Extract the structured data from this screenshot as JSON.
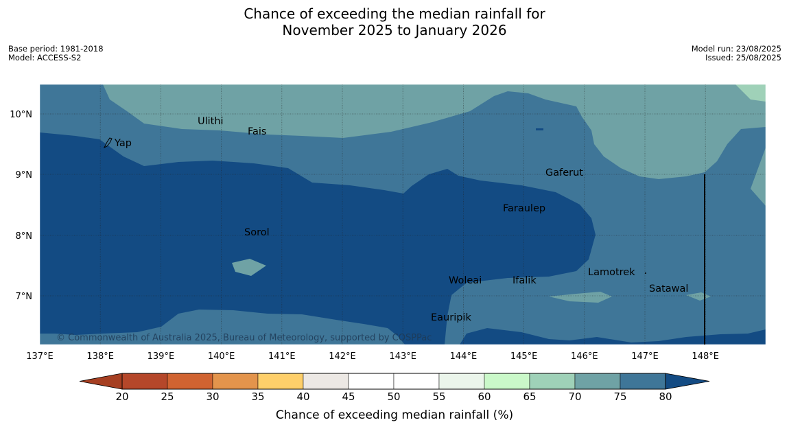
{
  "title": {
    "line1": "Chance of exceeding the median rainfall for",
    "line2": "November 2025 to January 2026"
  },
  "meta_left": {
    "base_period": "Base period: 1981-2018",
    "model": "Model: ACCESS-S2"
  },
  "meta_right": {
    "model_run": "Model run: 23/08/2025",
    "issued": "Issued: 25/08/2025"
  },
  "map": {
    "lon_labels": [
      "137°E",
      "138°E",
      "139°E",
      "140°E",
      "141°E",
      "142°E",
      "143°E",
      "144°E",
      "145°E",
      "146°E",
      "147°E",
      "148°E"
    ],
    "lat_labels": [
      "10°N",
      "9°N",
      "8°N",
      "7°N"
    ],
    "places": [
      "Yap",
      "Ulithi",
      "Fais",
      "Gaferut",
      "Faraulep",
      "Sorol",
      "Lamotrek",
      "Woleai",
      "Ifalik",
      "Satawal",
      "Eauripik"
    ],
    "copyright": "© Commonwealth of Australia 2025, Bureau of Meteorology, supported by COSPPac"
  },
  "colorbar": {
    "ticks": [
      "20",
      "25",
      "30",
      "35",
      "40",
      "45",
      "50",
      "55",
      "60",
      "65",
      "70",
      "75",
      "80"
    ],
    "colors": [
      "#a63f22",
      "#b5472a",
      "#d06331",
      "#e3944c",
      "#fecf6a",
      "#ece8e4",
      "#ffffff",
      "#ffffff",
      "#ebf5eb",
      "#caf8c9",
      "#9fd1b8",
      "#6fa2a5",
      "#3f7698",
      "#134b83"
    ],
    "label": "Chance of exceeding median rainfall (%)"
  }
}
